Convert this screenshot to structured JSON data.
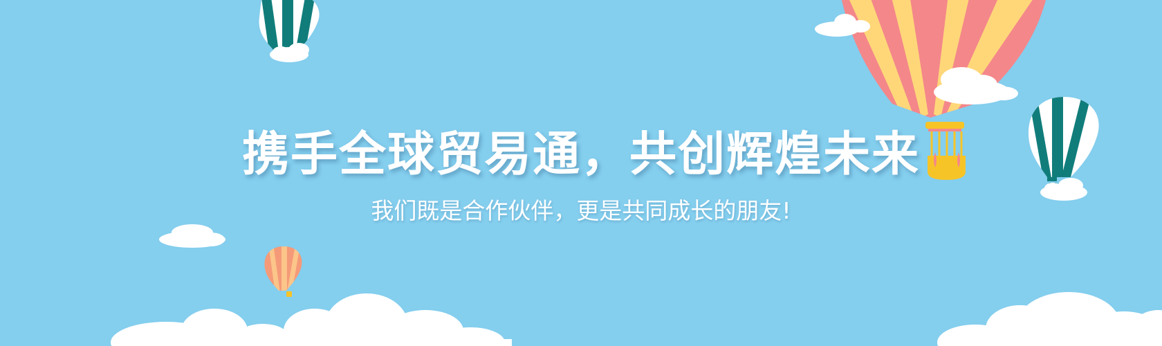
{
  "banner": {
    "headline": "携手全球贸易通，共创辉煌未来",
    "subtitle": "我们既是合作伙伴，更是共同成长的朋友!"
  },
  "colors": {
    "sky": "#84ceee",
    "cloud": "#ffffff",
    "balloon_teal": "#117d7b",
    "balloon_pink": "#f4878a",
    "balloon_yellow": "#ffd779",
    "balloon_orange": "#f59a78",
    "basket_gold": "#f7c428"
  },
  "decorations": [
    "balloon-teal-striped",
    "balloon-pink-yellow-striped",
    "balloon-orange-striped",
    "cloud"
  ]
}
